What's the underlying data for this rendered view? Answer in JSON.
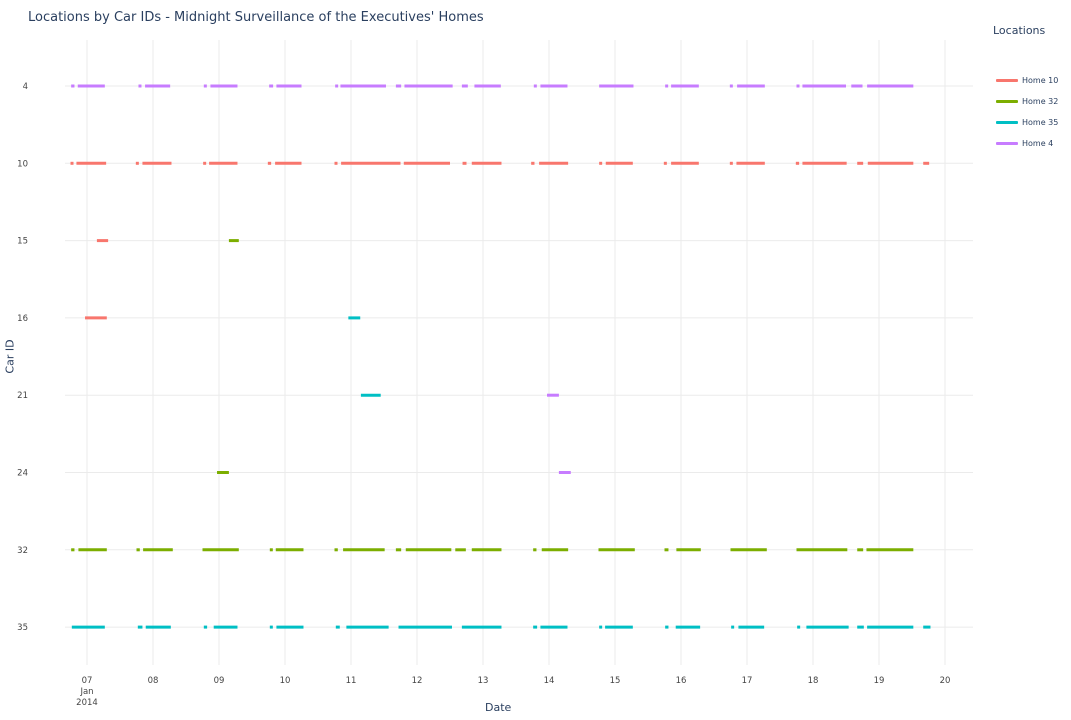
{
  "chart_data": {
    "type": "timeline",
    "title": "Locations by Car IDs - Midnight Surveillance of the Executives' Homes",
    "xlabel": "Date",
    "ylabel": "Car ID",
    "x_ticks": [
      "07",
      "08",
      "09",
      "10",
      "11",
      "12",
      "13",
      "14",
      "15",
      "16",
      "17",
      "18",
      "19",
      "20"
    ],
    "x_tick_sub": [
      "Jan",
      "2014"
    ],
    "x_range_days": [
      6.25,
      20.45
    ],
    "categories": [
      "4",
      "10",
      "15",
      "16",
      "21",
      "24",
      "32",
      "35"
    ],
    "legend_title": "Locations",
    "legend_position": "right",
    "grid": true,
    "series": [
      {
        "name": "Home 10",
        "color": "#F8766D",
        "segments": [
          {
            "car": "10",
            "start": 6.75,
            "end": 6.78
          },
          {
            "car": "10",
            "start": 6.84,
            "end": 7.29
          },
          {
            "car": "10",
            "start": 7.74,
            "end": 7.78
          },
          {
            "car": "10",
            "start": 7.84,
            "end": 8.28
          },
          {
            "car": "10",
            "start": 8.76,
            "end": 8.79
          },
          {
            "car": "10",
            "start": 8.85,
            "end": 9.28
          },
          {
            "car": "10",
            "start": 9.74,
            "end": 9.79
          },
          {
            "car": "10",
            "start": 9.85,
            "end": 10.25
          },
          {
            "car": "10",
            "start": 10.75,
            "end": 10.79
          },
          {
            "car": "10",
            "start": 10.85,
            "end": 11.75
          },
          {
            "car": "10",
            "start": 11.8,
            "end": 12.5
          },
          {
            "car": "10",
            "start": 12.69,
            "end": 12.75
          },
          {
            "car": "10",
            "start": 12.83,
            "end": 13.28
          },
          {
            "car": "10",
            "start": 13.73,
            "end": 13.78
          },
          {
            "car": "10",
            "start": 13.85,
            "end": 14.29
          },
          {
            "car": "10",
            "start": 14.76,
            "end": 14.79
          },
          {
            "car": "10",
            "start": 14.86,
            "end": 15.27
          },
          {
            "car": "10",
            "start": 15.74,
            "end": 15.78
          },
          {
            "car": "10",
            "start": 15.85,
            "end": 16.27
          },
          {
            "car": "10",
            "start": 16.74,
            "end": 16.77
          },
          {
            "car": "10",
            "start": 16.84,
            "end": 17.27
          },
          {
            "car": "10",
            "start": 17.74,
            "end": 17.79
          },
          {
            "car": "10",
            "start": 17.84,
            "end": 18.51
          },
          {
            "car": "10",
            "start": 18.67,
            "end": 18.76
          },
          {
            "car": "10",
            "start": 18.83,
            "end": 19.52
          },
          {
            "car": "10",
            "start": 19.67,
            "end": 19.76
          },
          {
            "car": "15",
            "start": 7.15,
            "end": 7.32
          },
          {
            "car": "16",
            "start": 6.97,
            "end": 7.3
          }
        ]
      },
      {
        "name": "Home 32",
        "color": "#7CAE00",
        "segments": [
          {
            "car": "32",
            "start": 6.76,
            "end": 6.81
          },
          {
            "car": "32",
            "start": 6.87,
            "end": 7.3
          },
          {
            "car": "32",
            "start": 7.75,
            "end": 7.8
          },
          {
            "car": "32",
            "start": 7.85,
            "end": 8.3
          },
          {
            "car": "32",
            "start": 8.75,
            "end": 9.3
          },
          {
            "car": "32",
            "start": 9.77,
            "end": 9.81
          },
          {
            "car": "32",
            "start": 9.86,
            "end": 10.28
          },
          {
            "car": "32",
            "start": 10.75,
            "end": 10.8
          },
          {
            "car": "32",
            "start": 10.88,
            "end": 11.51
          },
          {
            "car": "32",
            "start": 11.68,
            "end": 11.76
          },
          {
            "car": "32",
            "start": 11.83,
            "end": 12.52
          },
          {
            "car": "32",
            "start": 12.58,
            "end": 12.74
          },
          {
            "car": "32",
            "start": 12.83,
            "end": 13.28
          },
          {
            "car": "32",
            "start": 13.76,
            "end": 13.81
          },
          {
            "car": "32",
            "start": 13.89,
            "end": 14.29
          },
          {
            "car": "32",
            "start": 14.75,
            "end": 15.3
          },
          {
            "car": "32",
            "start": 15.75,
            "end": 15.81
          },
          {
            "car": "32",
            "start": 15.93,
            "end": 16.3
          },
          {
            "car": "32",
            "start": 16.75,
            "end": 17.3
          },
          {
            "car": "32",
            "start": 17.75,
            "end": 18.52
          },
          {
            "car": "32",
            "start": 18.67,
            "end": 18.76
          },
          {
            "car": "32",
            "start": 18.81,
            "end": 19.52
          },
          {
            "car": "15",
            "start": 9.15,
            "end": 9.3
          },
          {
            "car": "24",
            "start": 8.97,
            "end": 9.15
          }
        ]
      },
      {
        "name": "Home 35",
        "color": "#00BFC4",
        "segments": [
          {
            "car": "35",
            "start": 6.77,
            "end": 7.27
          },
          {
            "car": "35",
            "start": 7.77,
            "end": 7.84
          },
          {
            "car": "35",
            "start": 7.89,
            "end": 8.27
          },
          {
            "car": "35",
            "start": 8.77,
            "end": 8.82
          },
          {
            "car": "35",
            "start": 8.92,
            "end": 9.28
          },
          {
            "car": "35",
            "start": 9.77,
            "end": 9.81
          },
          {
            "car": "35",
            "start": 9.87,
            "end": 10.28
          },
          {
            "car": "35",
            "start": 10.77,
            "end": 10.83
          },
          {
            "car": "35",
            "start": 10.93,
            "end": 11.57
          },
          {
            "car": "35",
            "start": 11.72,
            "end": 12.53
          },
          {
            "car": "35",
            "start": 12.68,
            "end": 13.28
          },
          {
            "car": "35",
            "start": 13.76,
            "end": 13.82
          },
          {
            "car": "35",
            "start": 13.87,
            "end": 14.28
          },
          {
            "car": "35",
            "start": 14.76,
            "end": 14.79
          },
          {
            "car": "35",
            "start": 14.85,
            "end": 15.27
          },
          {
            "car": "35",
            "start": 15.76,
            "end": 15.81
          },
          {
            "car": "35",
            "start": 15.92,
            "end": 16.29
          },
          {
            "car": "35",
            "start": 16.76,
            "end": 16.79
          },
          {
            "car": "35",
            "start": 16.87,
            "end": 17.26
          },
          {
            "car": "35",
            "start": 17.76,
            "end": 17.79
          },
          {
            "car": "35",
            "start": 17.9,
            "end": 18.54
          },
          {
            "car": "35",
            "start": 18.67,
            "end": 18.77
          },
          {
            "car": "35",
            "start": 18.82,
            "end": 19.52
          },
          {
            "car": "35",
            "start": 19.67,
            "end": 19.78
          },
          {
            "car": "16",
            "start": 10.96,
            "end": 11.14
          },
          {
            "car": "21",
            "start": 11.15,
            "end": 11.45
          }
        ]
      },
      {
        "name": "Home 4",
        "color": "#C77CFF",
        "segments": [
          {
            "car": "4",
            "start": 6.76,
            "end": 6.81
          },
          {
            "car": "4",
            "start": 6.86,
            "end": 7.27
          },
          {
            "car": "4",
            "start": 7.78,
            "end": 7.81
          },
          {
            "car": "4",
            "start": 7.88,
            "end": 8.26
          },
          {
            "car": "4",
            "start": 8.77,
            "end": 8.8
          },
          {
            "car": "4",
            "start": 8.87,
            "end": 9.28
          },
          {
            "car": "4",
            "start": 9.76,
            "end": 9.82
          },
          {
            "car": "4",
            "start": 9.87,
            "end": 10.25
          },
          {
            "car": "4",
            "start": 10.76,
            "end": 10.8
          },
          {
            "car": "4",
            "start": 10.84,
            "end": 11.53
          },
          {
            "car": "4",
            "start": 11.68,
            "end": 11.76
          },
          {
            "car": "4",
            "start": 11.81,
            "end": 12.54
          },
          {
            "car": "4",
            "start": 12.68,
            "end": 12.77
          },
          {
            "car": "4",
            "start": 12.87,
            "end": 13.27
          },
          {
            "car": "4",
            "start": 13.77,
            "end": 13.81
          },
          {
            "car": "4",
            "start": 13.87,
            "end": 14.28
          },
          {
            "car": "4",
            "start": 14.76,
            "end": 15.28
          },
          {
            "car": "4",
            "start": 15.76,
            "end": 15.79
          },
          {
            "car": "4",
            "start": 15.85,
            "end": 16.27
          },
          {
            "car": "4",
            "start": 16.74,
            "end": 16.78
          },
          {
            "car": "4",
            "start": 16.85,
            "end": 17.27
          },
          {
            "car": "4",
            "start": 17.75,
            "end": 17.78
          },
          {
            "car": "4",
            "start": 17.84,
            "end": 18.5
          },
          {
            "car": "4",
            "start": 18.58,
            "end": 18.75
          },
          {
            "car": "4",
            "start": 18.82,
            "end": 19.52
          },
          {
            "car": "21",
            "start": 13.97,
            "end": 14.15
          },
          {
            "car": "24",
            "start": 14.15,
            "end": 14.33
          }
        ]
      }
    ]
  },
  "legend": {
    "title": "Locations",
    "items": [
      {
        "label": "Home 10",
        "color": "#F8766D"
      },
      {
        "label": "Home 32",
        "color": "#7CAE00"
      },
      {
        "label": "Home 35",
        "color": "#00BFC4"
      },
      {
        "label": "Home 4",
        "color": "#C77CFF"
      }
    ]
  }
}
